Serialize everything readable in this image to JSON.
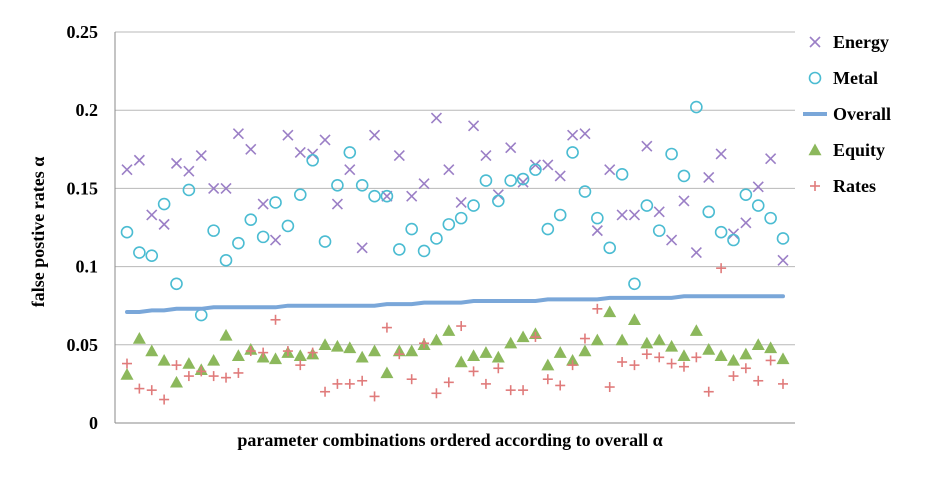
{
  "chart_data": {
    "type": "scatter",
    "xlabel": "parameter combinations ordered according to overall α",
    "ylabel": "false postive rates α",
    "ylim": [
      0,
      0.25
    ],
    "yticks": [
      0,
      0.05,
      0.1,
      0.15,
      0.2,
      0.25
    ],
    "ytick_labels": [
      "0",
      "0.05",
      "0.1",
      "0.15",
      "0.2",
      "0.25"
    ],
    "grid": "horizontal",
    "legend_position": "right",
    "x": [
      1,
      2,
      3,
      4,
      5,
      6,
      7,
      8,
      9,
      10,
      11,
      12,
      13,
      14,
      15,
      16,
      17,
      18,
      19,
      20,
      21,
      22,
      23,
      24,
      25,
      26,
      27,
      28,
      29,
      30,
      31,
      32,
      33,
      34,
      35,
      36,
      37,
      38,
      39,
      40,
      41,
      42,
      43,
      44,
      45,
      46,
      47,
      48,
      49,
      50,
      51,
      52,
      53,
      54
    ],
    "series": [
      {
        "name": "Energy",
        "marker": "x",
        "color": "#9b7fc6",
        "values": [
          0.162,
          0.168,
          0.133,
          0.127,
          0.166,
          0.161,
          0.171,
          0.15,
          0.15,
          0.185,
          0.175,
          0.14,
          0.117,
          0.184,
          0.173,
          0.172,
          0.181,
          0.14,
          0.162,
          0.112,
          0.184,
          0.145,
          0.171,
          0.145,
          0.153,
          0.195,
          0.162,
          0.141,
          0.19,
          0.171,
          0.146,
          0.176,
          0.154,
          0.165,
          0.165,
          0.158,
          0.184,
          0.185,
          0.123,
          0.162,
          0.133,
          0.133,
          0.177,
          0.135,
          0.117,
          0.142,
          0.109,
          0.157,
          0.172,
          0.121,
          0.128,
          0.151,
          0.169,
          0.104
        ]
      },
      {
        "name": "Metal",
        "marker": "o",
        "color": "#4bbcd2",
        "values": [
          0.122,
          0.109,
          0.107,
          0.14,
          0.089,
          0.149,
          0.069,
          0.123,
          0.104,
          0.115,
          0.13,
          0.119,
          0.141,
          0.126,
          0.146,
          0.168,
          0.116,
          0.152,
          0.173,
          0.152,
          0.145,
          0.145,
          0.111,
          0.124,
          0.11,
          0.118,
          0.127,
          0.131,
          0.139,
          0.155,
          0.142,
          0.155,
          0.156,
          0.162,
          0.124,
          0.133,
          0.173,
          0.148,
          0.131,
          0.112,
          0.159,
          0.089,
          0.139,
          0.123,
          0.172,
          0.158,
          0.202,
          0.135,
          0.122,
          0.117,
          0.146,
          0.139,
          0.131,
          0.118
        ]
      },
      {
        "name": "Overall",
        "marker": "line",
        "color": "#7aa7d9",
        "values": [
          0.071,
          0.071,
          0.072,
          0.072,
          0.073,
          0.073,
          0.073,
          0.074,
          0.074,
          0.074,
          0.074,
          0.074,
          0.074,
          0.075,
          0.075,
          0.075,
          0.075,
          0.075,
          0.075,
          0.075,
          0.075,
          0.076,
          0.076,
          0.076,
          0.077,
          0.077,
          0.077,
          0.077,
          0.078,
          0.078,
          0.078,
          0.078,
          0.078,
          0.078,
          0.079,
          0.079,
          0.079,
          0.079,
          0.079,
          0.08,
          0.08,
          0.08,
          0.08,
          0.08,
          0.08,
          0.081,
          0.081,
          0.081,
          0.081,
          0.081,
          0.081,
          0.081,
          0.081,
          0.081
        ]
      },
      {
        "name": "Equity",
        "marker": "triangle",
        "color": "#8cb85c",
        "values": [
          0.031,
          0.054,
          0.046,
          0.04,
          0.026,
          0.038,
          0.034,
          0.04,
          0.056,
          0.043,
          0.047,
          0.042,
          0.041,
          0.045,
          0.043,
          0.044,
          0.05,
          0.049,
          0.048,
          0.042,
          0.046,
          0.032,
          0.046,
          0.046,
          0.05,
          0.053,
          0.059,
          0.039,
          0.043,
          0.045,
          0.042,
          0.051,
          0.055,
          0.057,
          0.037,
          0.045,
          0.04,
          0.046,
          0.053,
          0.071,
          0.053,
          0.066,
          0.051,
          0.053,
          0.049,
          0.043,
          0.059,
          0.047,
          0.043,
          0.04,
          0.044,
          0.05,
          0.048,
          0.041
        ]
      },
      {
        "name": "Rates",
        "marker": "+",
        "color": "#e07b7b",
        "values": [
          0.038,
          0.022,
          0.021,
          0.015,
          0.037,
          0.03,
          0.033,
          0.03,
          0.029,
          0.032,
          0.046,
          0.045,
          0.066,
          0.046,
          0.037,
          0.045,
          0.02,
          0.025,
          0.025,
          0.027,
          0.017,
          0.061,
          0.044,
          0.028,
          0.051,
          0.019,
          0.026,
          0.062,
          0.033,
          0.025,
          0.035,
          0.021,
          0.021,
          0.055,
          0.028,
          0.024,
          0.037,
          0.054,
          0.073,
          0.023,
          0.039,
          0.037,
          0.044,
          0.042,
          0.038,
          0.036,
          0.042,
          0.02,
          0.099,
          0.03,
          0.035,
          0.027,
          0.04,
          0.025
        ]
      }
    ]
  }
}
